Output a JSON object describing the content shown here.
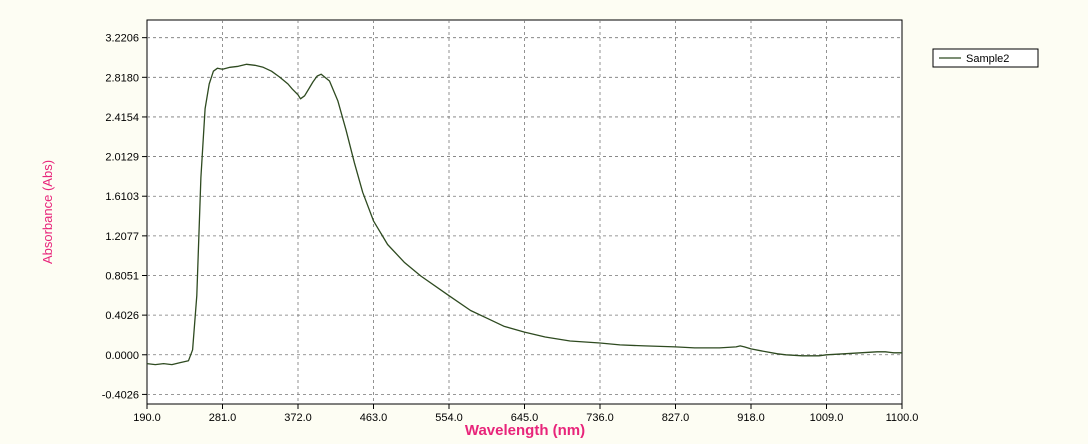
{
  "chart_data": {
    "type": "line",
    "xlabel": "Wavelength (nm)",
    "ylabel": "Absorbance (Abs)",
    "xlim": [
      190.0,
      1100.0
    ],
    "ylim": [
      -0.5,
      3.4
    ],
    "x_ticks": [
      "190.0",
      "281.0",
      "372.0",
      "463.0",
      "554.0",
      "645.0",
      "736.0",
      "827.0",
      "918.0",
      "1009.0",
      "1100.0"
    ],
    "y_ticks": [
      "-0.4026",
      "0.0000",
      "0.4026",
      "0.8051",
      "1.2077",
      "1.6103",
      "2.0129",
      "2.4154",
      "2.8180",
      "3.2206"
    ],
    "grid": true,
    "legend_position": "top-right",
    "colors": {
      "line": "#2e4a20",
      "axis_title": "#e8247a",
      "background": "#fdfdf3",
      "plot_bg": "#ffffff"
    },
    "series": [
      {
        "name": "Sample2",
        "x": [
          190,
          200,
          210,
          220,
          230,
          240,
          245,
          250,
          255,
          260,
          265,
          270,
          275,
          281,
          290,
          300,
          310,
          320,
          330,
          340,
          350,
          360,
          365,
          372,
          375,
          380,
          385,
          390,
          395,
          400,
          410,
          420,
          430,
          440,
          450,
          463,
          480,
          500,
          520,
          554,
          580,
          600,
          620,
          645,
          670,
          700,
          736,
          760,
          790,
          827,
          850,
          880,
          900,
          905,
          910,
          918,
          930,
          950,
          960,
          980,
          1000,
          1009,
          1030,
          1050,
          1070,
          1080,
          1090,
          1100
        ],
        "y": [
          -0.09,
          -0.1,
          -0.09,
          -0.1,
          -0.08,
          -0.06,
          0.05,
          0.6,
          1.8,
          2.5,
          2.75,
          2.88,
          2.91,
          2.9,
          2.92,
          2.93,
          2.95,
          2.94,
          2.92,
          2.88,
          2.82,
          2.75,
          2.7,
          2.64,
          2.6,
          2.63,
          2.7,
          2.77,
          2.83,
          2.85,
          2.78,
          2.58,
          2.28,
          1.95,
          1.65,
          1.36,
          1.12,
          0.94,
          0.8,
          0.6,
          0.45,
          0.37,
          0.29,
          0.23,
          0.18,
          0.14,
          0.12,
          0.1,
          0.09,
          0.08,
          0.07,
          0.07,
          0.08,
          0.09,
          0.08,
          0.06,
          0.04,
          0.01,
          0.0,
          -0.01,
          -0.01,
          0.0,
          0.01,
          0.02,
          0.03,
          0.03,
          0.02,
          0.02
        ]
      }
    ]
  }
}
